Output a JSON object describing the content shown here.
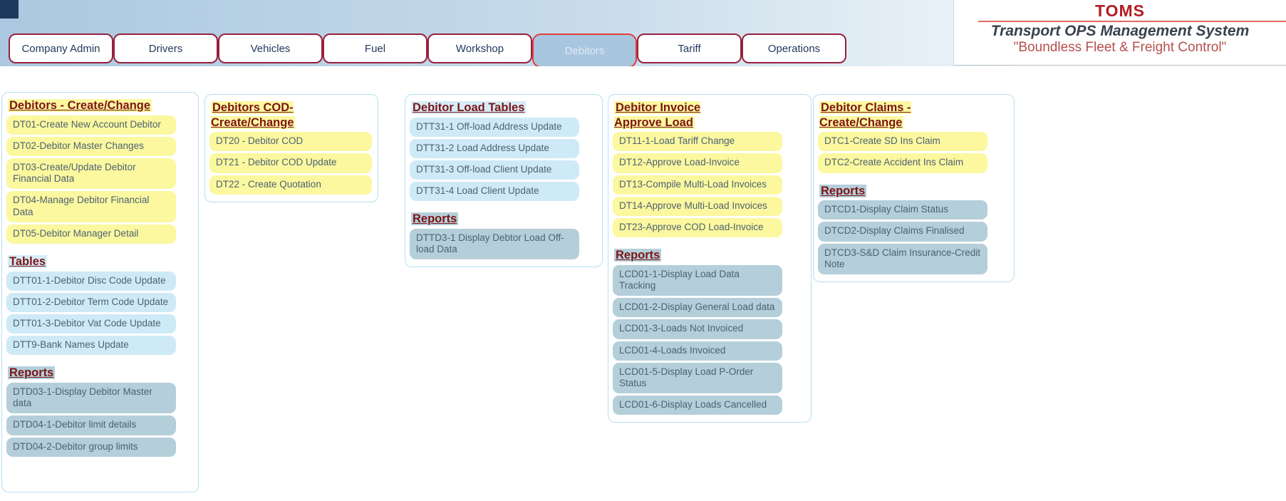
{
  "header": {
    "tabs": [
      {
        "label": "Company Admin",
        "active": false
      },
      {
        "label": "Drivers",
        "active": false
      },
      {
        "label": "Vehicles",
        "active": false
      },
      {
        "label": "Fuel",
        "active": false
      },
      {
        "label": "Workshop",
        "active": false
      },
      {
        "label": "Debitors",
        "active": true
      },
      {
        "label": "Tariff",
        "active": false
      },
      {
        "label": "Operations",
        "active": false
      }
    ],
    "logo": {
      "title": "TOMS",
      "subtitle": "Transport OPS Management System",
      "tagline": "\"Boundless Fleet & Freight Control\""
    }
  },
  "colors": {
    "header_blue": "#abc8e0",
    "tab_border_maroon": "#97203f",
    "active_tab_fill": "#a9c6df",
    "active_tab_border": "#e23c3c",
    "brand_red": "#b01e24",
    "heading_red": "#7d1416",
    "yellow_item": "#fbf89f",
    "blue_item": "#cfeaf7",
    "gray_item": "#b4cfda",
    "item_text": "#4e6171"
  },
  "columns": [
    {
      "id": "debitors-create-change",
      "sections": [
        {
          "heading": "Debitors - Create/Change",
          "style": "yellow",
          "items": [
            "DT01-Create New Account Debitor",
            "DT02-Debitor Master Changes",
            "DT03-Create/Update Debitor Financial Data",
            "DT04-Manage Debitor Financial Data",
            "DT05-Debitor Manager Detail"
          ]
        },
        {
          "heading": "Tables",
          "style": "blue",
          "items": [
            "DTT01-1-Debitor Disc Code Update",
            "DTT01-2-Debitor Term Code Update",
            "DTT01-3-Debitor Vat Code Update",
            "DTT9-Bank Names Update"
          ]
        },
        {
          "heading": "Reports",
          "style": "gray",
          "items": [
            "DTD03-1-Display Debitor Master data",
            "DTD04-1-Debitor limit details",
            "DTD04-2-Debitor group limits"
          ]
        }
      ]
    },
    {
      "id": "debitors-cod-create-change",
      "sections": [
        {
          "heading": "Debitors COD- Create/Change",
          "style": "yellow",
          "items": [
            "DT20 - Debitor COD",
            "DT21 - Debitor COD Update",
            "DT22 - Create Quotation"
          ]
        }
      ]
    },
    {
      "id": "debitor-load-tables",
      "sections": [
        {
          "heading": "Debitor Load Tables",
          "style": "blue",
          "items": [
            "DTT31-1 Off-load Address Update",
            "DTT31-2 Load Address Update",
            "DTT31-3 Off-load Client Update",
            "DTT31-4 Load Client Update"
          ]
        },
        {
          "heading": "Reports",
          "style": "gray",
          "items": [
            "DTTD3-1 Display Debtor Load Off-load Data"
          ]
        }
      ]
    },
    {
      "id": "debitor-invoice-approve-load",
      "sections": [
        {
          "heading": "Debitor Invoice\nApprove Load",
          "style": "yellow",
          "items": [
            "DT11-1-Load Tariff Change",
            "DT12-Approve Load-Invoice",
            "DT13-Compile Multi-Load Invoices",
            "DT14-Approve Multi-Load Invoices",
            "DT23-Approve COD Load-Invoice"
          ]
        },
        {
          "heading": "Reports",
          "style": "gray",
          "items": [
            "LCD01-1-Display Load Data Tracking",
            "LCD01-2-Display General Load data",
            "LCD01-3-Loads Not Invoiced",
            "LCD01-4-Loads Invoiced",
            "LCD01-5-Display Load P-Order Status",
            "LCD01-6-Display Loads Cancelled"
          ]
        }
      ]
    },
    {
      "id": "debitor-claims-create-change",
      "sections": [
        {
          "heading": "Debitor Claims -\nCreate/Change",
          "style": "yellow",
          "items": [
            "DTC1-Create SD Ins Claim",
            "DTC2-Create Accident Ins Claim"
          ]
        },
        {
          "heading": "Reports",
          "style": "gray",
          "items": [
            "DTCD1-Display Claim Status",
            "DTCD2-Display Claims Finalised",
            "DTCD3-S&D Claim Insurance-Credit Note"
          ]
        }
      ]
    }
  ]
}
